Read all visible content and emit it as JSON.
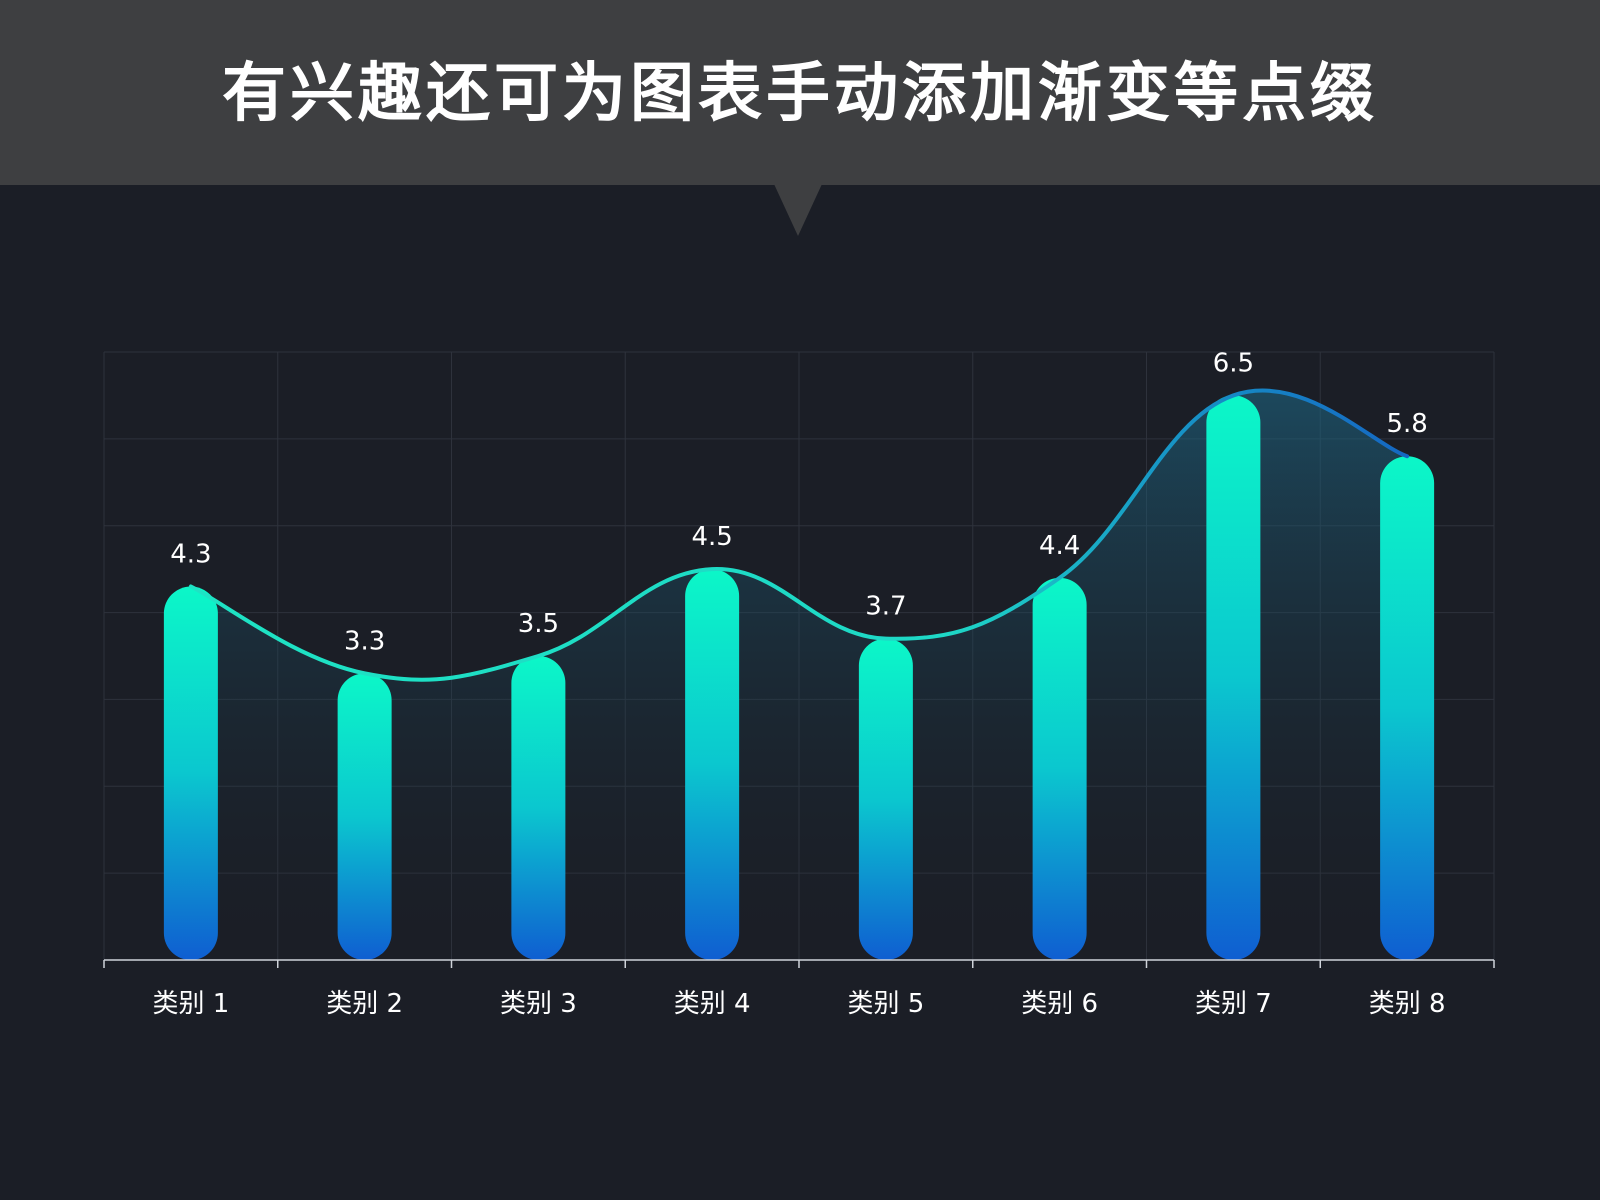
{
  "header": {
    "title": "有兴趣还可为图表手动添加渐变等点缀"
  },
  "colors": {
    "background": "#1b1e26",
    "header_bg": "#3e3f41",
    "bar_top": "#0cf7c8",
    "bar_bottom": "#0f5ed1",
    "line_start": "#1ee3c4",
    "line_end": "#1567c2",
    "grid": "#2e323c",
    "axis": "#cfd3da",
    "text": "#ffffff"
  },
  "chart_data": {
    "type": "bar",
    "categories": [
      "类别 1",
      "类别 2",
      "类别 3",
      "类别 4",
      "类别 5",
      "类别 6",
      "类别 7",
      "类别 8"
    ],
    "series": [
      {
        "values": [
          4.3,
          3.3,
          3.5,
          4.5,
          3.7,
          4.4,
          6.5,
          5.8
        ]
      }
    ],
    "overlay": "smoothed line with gradient area through bar tops",
    "data_labels": [
      "4.3",
      "3.3",
      "3.5",
      "4.5",
      "3.7",
      "4.4",
      "6.5",
      "5.8"
    ],
    "title": "",
    "xlabel": "",
    "ylabel": "",
    "ylim": [
      0,
      7
    ],
    "grid": true,
    "y_tick_labels_shown": false
  }
}
